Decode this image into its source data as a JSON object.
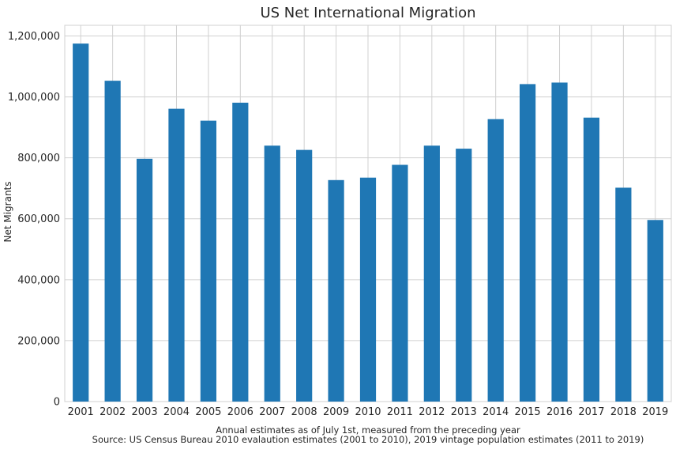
{
  "chart_data": {
    "type": "bar",
    "title": "US Net International Migration",
    "ylabel": "Net Migrants",
    "xlabel": "",
    "caption_line1": "Annual estimates as of July 1st, measured from the preceding year",
    "caption_line2": "Source: US Census Bureau 2010 evalaution estimates (2001 to 2010), 2019 vintage population estimates (2011 to 2019)",
    "categories": [
      "2001",
      "2002",
      "2003",
      "2004",
      "2005",
      "2006",
      "2007",
      "2008",
      "2009",
      "2010",
      "2011",
      "2012",
      "2013",
      "2014",
      "2015",
      "2016",
      "2017",
      "2018",
      "2019"
    ],
    "values": [
      1175000,
      1053000,
      797000,
      961000,
      922000,
      981000,
      840000,
      826000,
      727000,
      735000,
      777000,
      840000,
      830000,
      927000,
      1042000,
      1047000,
      932000,
      702000,
      596000
    ],
    "ylim": [
      0,
      1235000
    ],
    "yticks": [
      0,
      200000,
      400000,
      600000,
      800000,
      1000000,
      1200000
    ],
    "ytick_labels": [
      "0",
      "200,000",
      "400,000",
      "600,000",
      "800,000",
      "1,000,000",
      "1,200,000"
    ],
    "grid": true,
    "bar_color": "#1f77b4",
    "grid_color": "#d0d0d0"
  }
}
